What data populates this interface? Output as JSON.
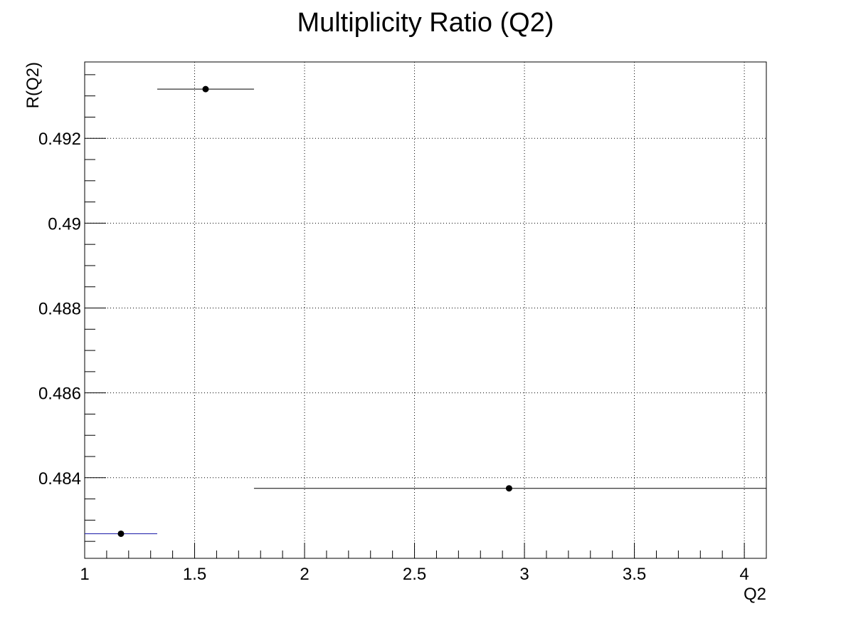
{
  "chart_data": {
    "type": "scatter",
    "title": "Multiplicity Ratio (Q2)",
    "xlabel": "Q2",
    "ylabel": "R(Q2)",
    "xlim": [
      1.0,
      4.1
    ],
    "ylim": [
      0.4821,
      0.4938
    ],
    "grid": true,
    "x_ticks": [
      {
        "value": 1.0,
        "label": "1"
      },
      {
        "value": 1.5,
        "label": "1.5"
      },
      {
        "value": 2.0,
        "label": "2"
      },
      {
        "value": 2.5,
        "label": "2.5"
      },
      {
        "value": 3.0,
        "label": "3"
      },
      {
        "value": 3.5,
        "label": "3.5"
      },
      {
        "value": 4.0,
        "label": "4"
      }
    ],
    "y_ticks": [
      {
        "value": 0.484,
        "label": "0.484"
      },
      {
        "value": 0.486,
        "label": "0.486"
      },
      {
        "value": 0.488,
        "label": "0.488"
      },
      {
        "value": 0.49,
        "label": "0.49"
      },
      {
        "value": 0.492,
        "label": "0.492"
      }
    ],
    "series": [
      {
        "points": [
          {
            "x": 1.165,
            "y": 0.48268,
            "xerr_low": 1.0,
            "xerr_high": 1.33,
            "color": "#1a1aa8"
          },
          {
            "x": 1.55,
            "y": 0.49316,
            "xerr_low": 1.33,
            "xerr_high": 1.77,
            "color": "#000000"
          },
          {
            "x": 2.93,
            "y": 0.48375,
            "xerr_low": 1.77,
            "xerr_high": 4.1,
            "color": "#000000"
          }
        ]
      }
    ],
    "marker_color": "#000000"
  }
}
